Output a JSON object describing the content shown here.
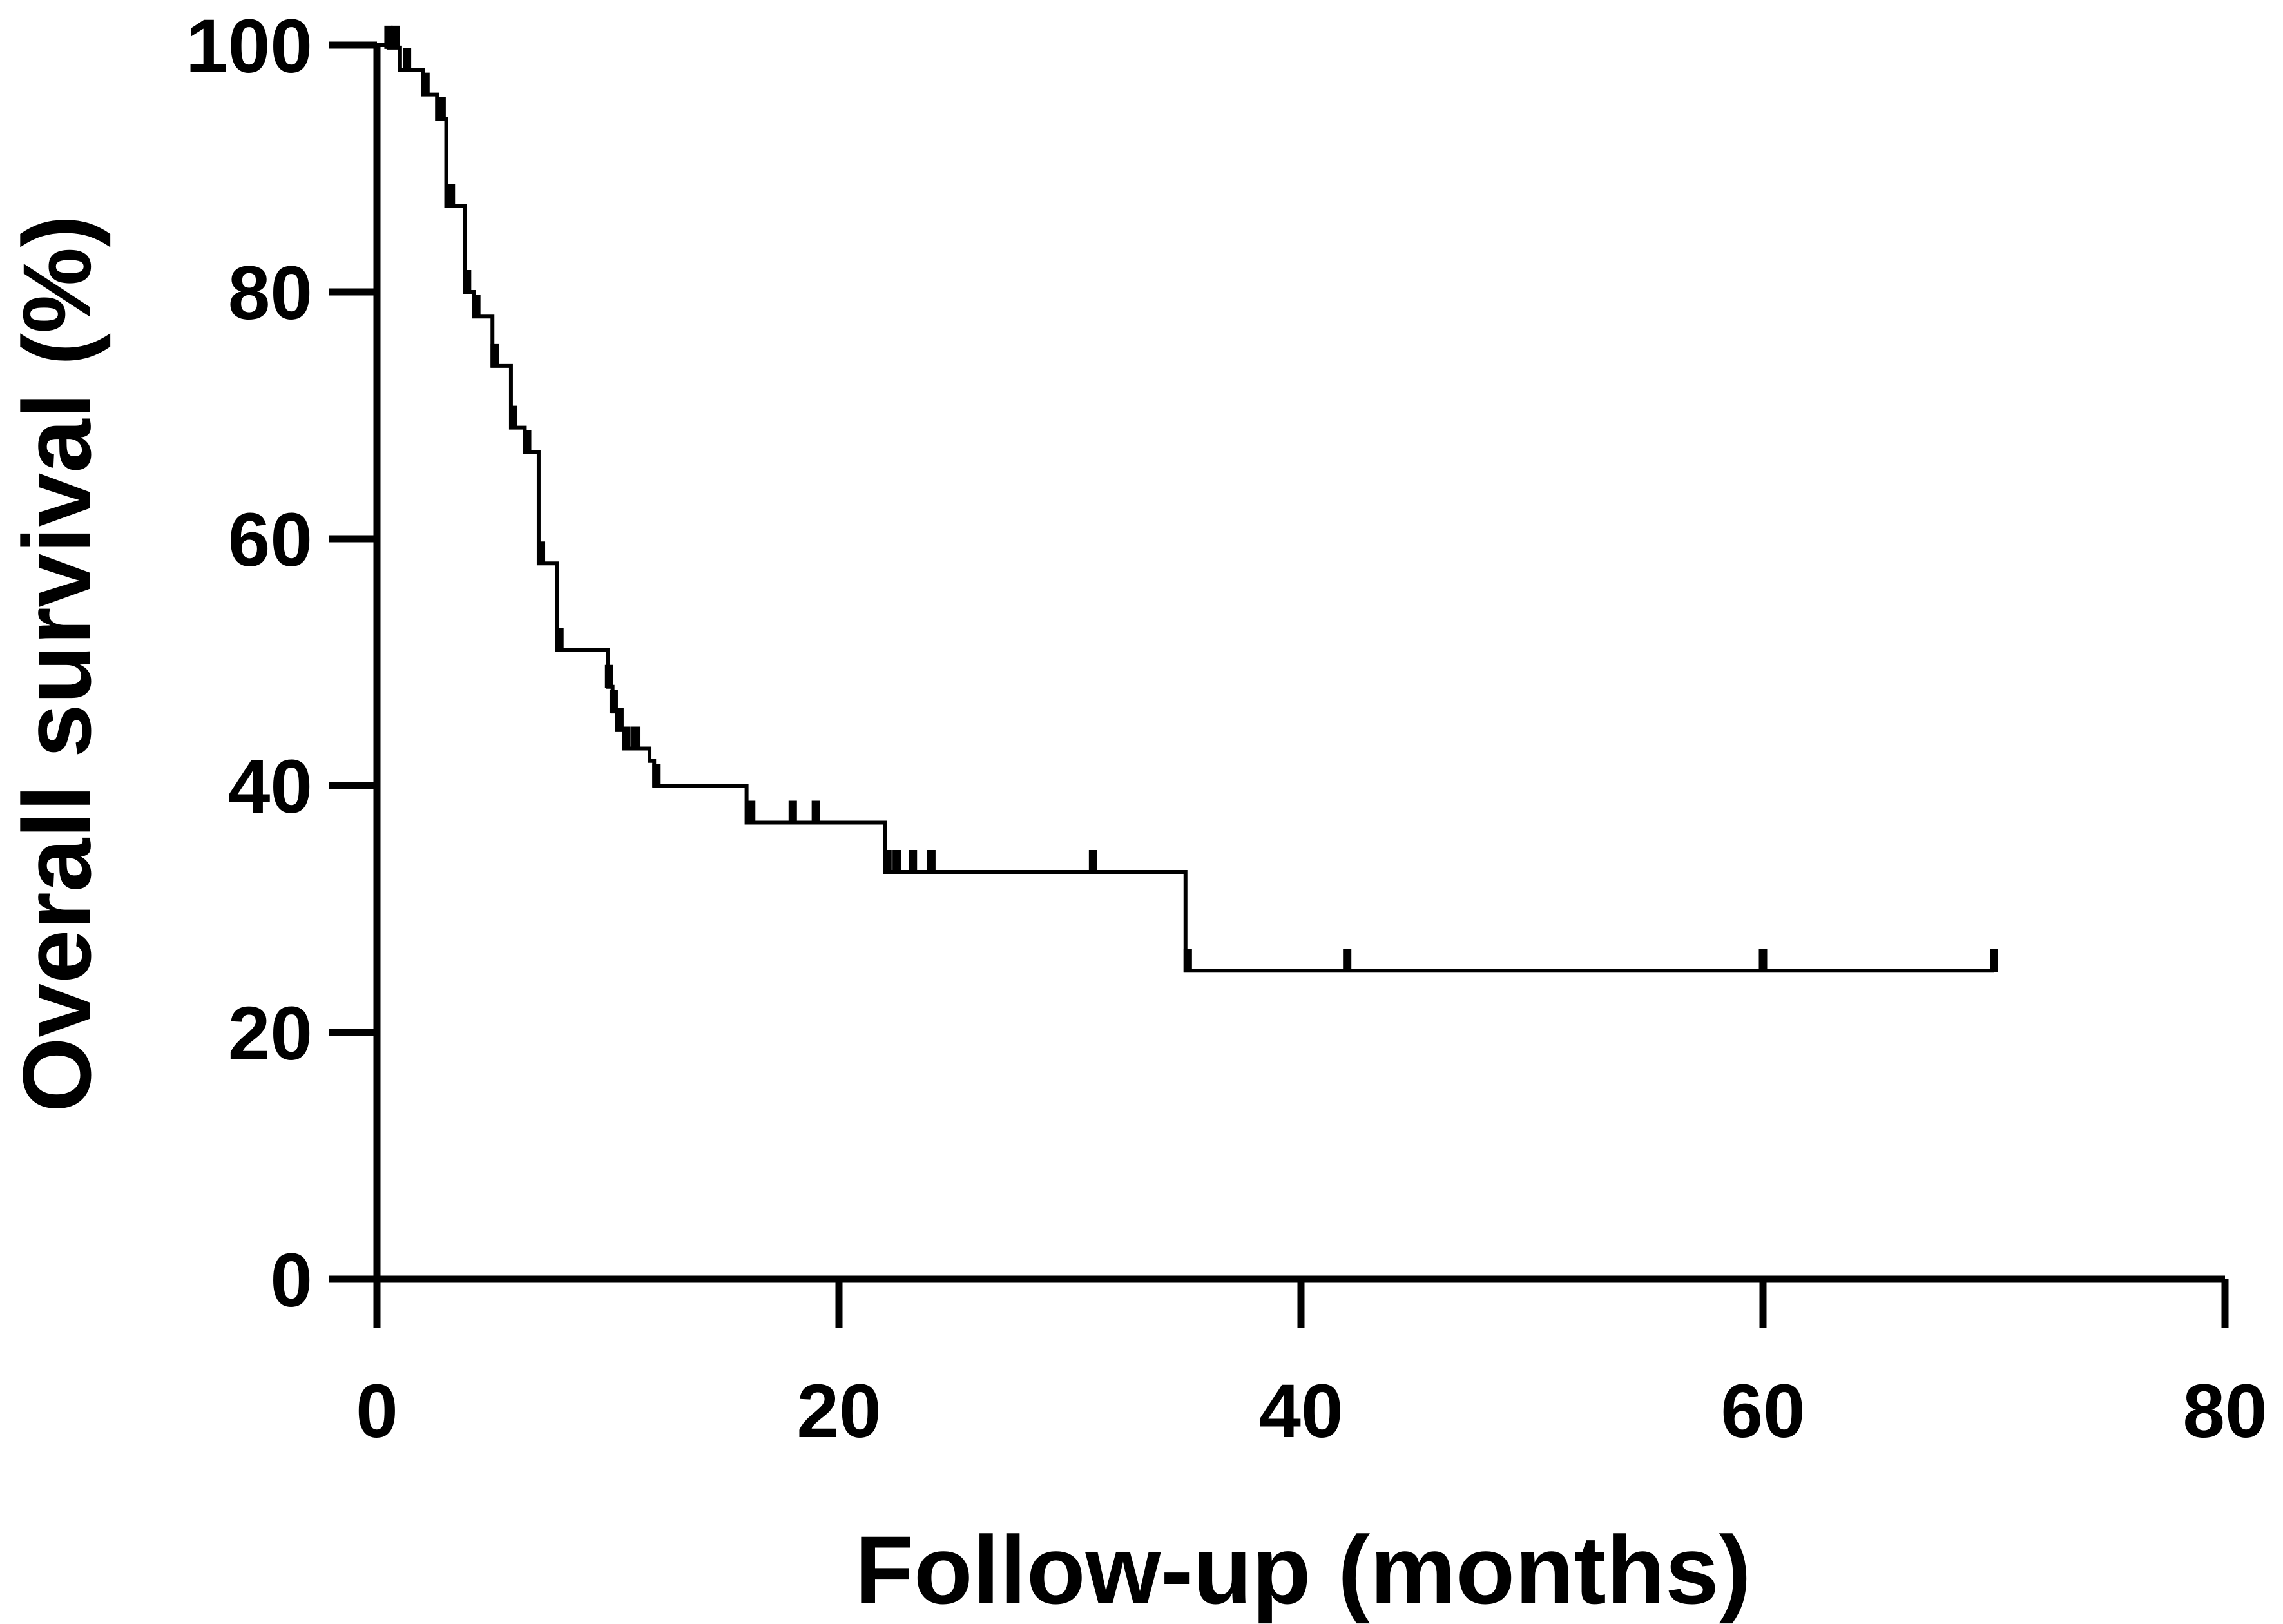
{
  "chart_data": {
    "type": "line",
    "subtype": "kaplan-meier",
    "title": "",
    "xlabel": "Follow-up (months)",
    "ylabel": "Overall survival (%)",
    "xlim": [
      0,
      80
    ],
    "ylim": [
      0,
      100
    ],
    "xticks": [
      0,
      20,
      40,
      60,
      80
    ],
    "yticks": [
      0,
      20,
      40,
      60,
      80,
      100
    ],
    "grid": false,
    "legend": "none",
    "line_color": "#000000",
    "series": [
      {
        "steps": [
          [
            0,
            100
          ],
          [
            0.5,
            99.8
          ],
          [
            1,
            98
          ],
          [
            2,
            96
          ],
          [
            2.6,
            94
          ],
          [
            3,
            87
          ],
          [
            3.8,
            80
          ],
          [
            4.2,
            78
          ],
          [
            5,
            74
          ],
          [
            5.8,
            69
          ],
          [
            6.4,
            67
          ],
          [
            7,
            58
          ],
          [
            7.8,
            51
          ],
          [
            10,
            48
          ],
          [
            10.2,
            46
          ],
          [
            10.4,
            44.5
          ],
          [
            10.7,
            43
          ],
          [
            11.8,
            42
          ],
          [
            12,
            40
          ],
          [
            16,
            37
          ],
          [
            22,
            33
          ],
          [
            35,
            25
          ],
          [
            70,
            25
          ]
        ],
        "censored": [
          [
            0.5,
            99.8
          ],
          [
            0.8,
            99.8
          ],
          [
            1.3,
            98
          ],
          [
            2.1,
            96
          ],
          [
            2.8,
            94
          ],
          [
            3.2,
            87
          ],
          [
            3.9,
            80
          ],
          [
            4.3,
            78
          ],
          [
            5.1,
            74
          ],
          [
            5.9,
            69
          ],
          [
            6.5,
            67
          ],
          [
            7.1,
            58
          ],
          [
            7.9,
            51
          ],
          [
            10.05,
            48
          ],
          [
            10.25,
            46
          ],
          [
            10.5,
            44.5
          ],
          [
            10.8,
            43
          ],
          [
            11.2,
            43
          ],
          [
            12.1,
            40
          ],
          [
            16.2,
            37
          ],
          [
            18,
            37
          ],
          [
            19,
            37
          ],
          [
            22.1,
            33
          ],
          [
            22.5,
            33
          ],
          [
            23.2,
            33
          ],
          [
            24,
            33
          ],
          [
            31,
            33
          ],
          [
            35.1,
            25
          ],
          [
            42,
            25
          ],
          [
            60,
            25
          ],
          [
            70,
            25
          ]
        ]
      }
    ]
  }
}
